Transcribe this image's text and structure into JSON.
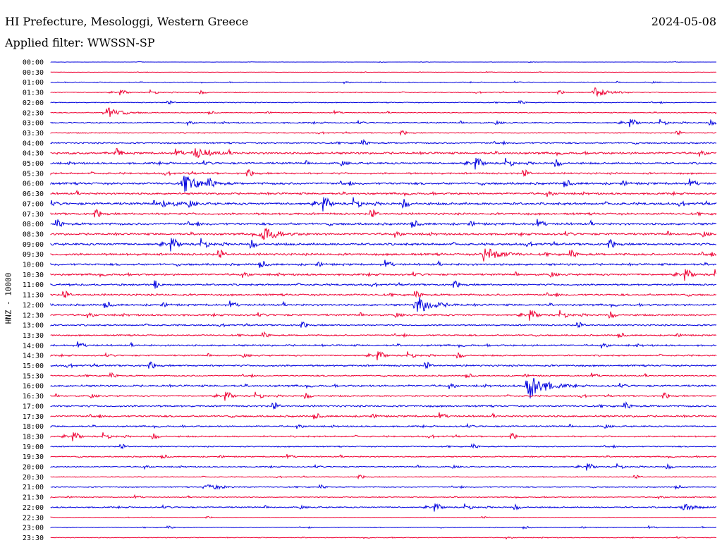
{
  "header": {
    "station": "HI Prefecture, Mesologgi, Western Greece",
    "filter": "Applied filter: WWSSN-SP",
    "date": "2024-05-08"
  },
  "colors": {
    "even": "#0000dd",
    "odd": "#ee0033"
  },
  "chart_data": {
    "type": "line",
    "subtype": "helicorder",
    "ylabel": "HNZ - 10000",
    "rows": [
      "00:00",
      "00:30",
      "01:00",
      "01:30",
      "02:00",
      "02:30",
      "03:00",
      "03:30",
      "04:00",
      "04:30",
      "05:00",
      "05:30",
      "06:00",
      "06:30",
      "07:00",
      "07:30",
      "08:00",
      "08:30",
      "09:00",
      "09:30",
      "10:00",
      "10:30",
      "11:00",
      "11:30",
      "12:00",
      "12:30",
      "13:00",
      "13:30",
      "14:00",
      "14:30",
      "15:00",
      "15:30",
      "16:00",
      "16:30",
      "17:00",
      "17:30",
      "18:00",
      "18:30",
      "19:00",
      "19:30",
      "20:00",
      "20:30",
      "21:00",
      "21:30",
      "22:00",
      "22:30",
      "23:00",
      "23:30"
    ],
    "noise_level": [
      0.15,
      0.2,
      0.5,
      0.6,
      0.6,
      0.6,
      0.9,
      0.7,
      1.0,
      1.4,
      1.3,
      1.2,
      1.5,
      1.3,
      1.6,
      1.4,
      1.5,
      1.4,
      1.5,
      1.5,
      1.4,
      1.3,
      1.2,
      1.3,
      1.3,
      1.2,
      1.0,
      1.0,
      1.2,
      1.0,
      1.2,
      0.9,
      1.3,
      1.0,
      1.2,
      1.2,
      1.0,
      1.0,
      0.8,
      0.8,
      0.8,
      0.6,
      0.7,
      0.6,
      0.9,
      0.3,
      0.5,
      0.5
    ],
    "events": [
      {
        "row": "01:30",
        "minute": 24.5,
        "amp": 7
      },
      {
        "row": "02:30",
        "minute": 2.5,
        "amp": 8
      },
      {
        "row": "04:30",
        "minute": 6.5,
        "amp": 8
      },
      {
        "row": "06:00",
        "minute": 6,
        "amp": 12
      },
      {
        "row": "07:00",
        "minute": 5,
        "amp": 5
      },
      {
        "row": "08:30",
        "minute": 9.5,
        "amp": 12
      },
      {
        "row": "09:30",
        "minute": 19.5,
        "amp": 12
      },
      {
        "row": "12:00",
        "minute": 16.5,
        "amp": 14
      },
      {
        "row": "16:00",
        "minute": 21.5,
        "amp": 24
      },
      {
        "row": "21:00",
        "minute": 7,
        "amp": 5
      },
      {
        "row": "22:00",
        "minute": 28.5,
        "amp": 5
      }
    ]
  }
}
